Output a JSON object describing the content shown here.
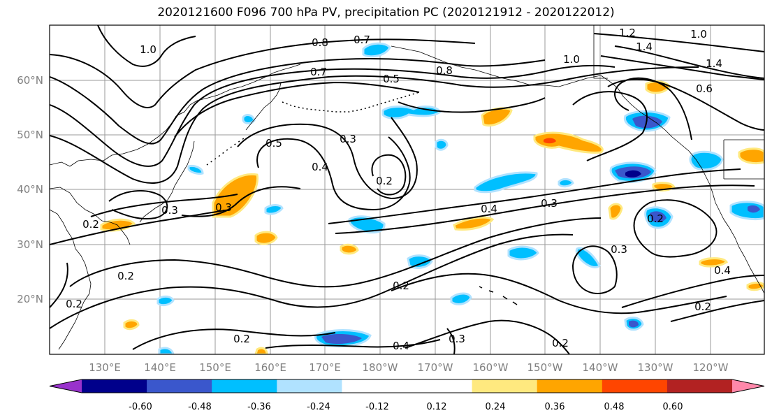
{
  "title": "2020121600 F096 700 hPa PV, precipitation PC (2020121912 - 2020122012)",
  "lat_labels": [
    "60°N",
    "50°N",
    "40°N",
    "30°N",
    "20°N"
  ],
  "lon_labels": [
    "130°E",
    "140°E",
    "150°E",
    "160°E",
    "170°E",
    "180°W",
    "170°W",
    "160°W",
    "150°W",
    "140°W",
    "130°W",
    "120°W"
  ],
  "colorbar": {
    "colors": [
      "#9932cc",
      "#00008b",
      "#3a57cc",
      "#00bfff",
      "#b0e2ff",
      "#ffffff",
      "#ffffff",
      "#ffe97f",
      "#ffa500",
      "#ff4500",
      "#b22222",
      "#ff88aa"
    ],
    "tick_labels": [
      "-0.60",
      "-0.48",
      "-0.36",
      "-0.24",
      "-0.12",
      "0.12",
      "0.24",
      "0.36",
      "0.48",
      "0.60"
    ]
  },
  "contour_labels": [
    "1.0",
    "0.8",
    "0.7",
    "0.8",
    "0.7",
    "0.5",
    "1.0",
    "1.2",
    "1.0",
    "1.4",
    "1.4",
    "0.6",
    "0.5",
    "0.3",
    "0.4",
    "0.2",
    "0.3",
    "0.3",
    "0.4",
    "0.3",
    "0.2",
    "0.3",
    "0.2",
    "0.2",
    "0.4",
    "0.2",
    "0.2",
    "0.4",
    "0.2",
    "0.3",
    "0.2",
    "0.2"
  ]
}
